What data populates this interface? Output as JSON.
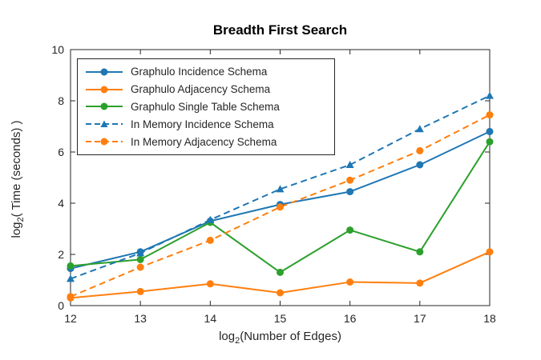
{
  "chart_data": {
    "type": "line",
    "title": "Breadth First Search",
    "xlabel": {
      "prefix": "log",
      "sub": "2",
      "suffix": "(Number of Edges)"
    },
    "ylabel": {
      "prefix": "log",
      "sub": "2",
      "suffix": "( Time (seconds) )"
    },
    "x": [
      12,
      13,
      14,
      15,
      16,
      17,
      18
    ],
    "xlim": [
      12,
      18
    ],
    "ylim": [
      0,
      10
    ],
    "xticks": [
      12,
      13,
      14,
      15,
      16,
      17,
      18
    ],
    "yticks": [
      0,
      2,
      4,
      6,
      8,
      10
    ],
    "grid": false,
    "legend_position": "top-left",
    "series": [
      {
        "name": "Graphulo Incidence Schema",
        "color": "#1f77b4",
        "line": "solid",
        "marker": "circle",
        "values": [
          1.45,
          2.1,
          3.3,
          3.95,
          4.45,
          5.5,
          6.8
        ]
      },
      {
        "name": "Graphulo Adjacency Schema",
        "color": "#ff7f0e",
        "line": "solid",
        "marker": "circle",
        "values": [
          0.3,
          0.55,
          0.85,
          0.5,
          0.92,
          0.88,
          2.1
        ]
      },
      {
        "name": "Graphulo Single Table Schema",
        "color": "#2ca02c",
        "line": "solid",
        "marker": "circle",
        "values": [
          1.55,
          1.8,
          3.25,
          1.3,
          2.95,
          2.1,
          6.4
        ]
      },
      {
        "name": "In Memory Incidence Schema",
        "color": "#1f77b4",
        "line": "dashed",
        "marker": "triangle",
        "values": [
          1.05,
          2.05,
          3.35,
          4.55,
          5.5,
          6.9,
          8.2
        ]
      },
      {
        "name": "In Memory Adjacency Schema",
        "color": "#ff7f0e",
        "line": "dashed",
        "marker": "circle",
        "values": [
          0.35,
          1.5,
          2.55,
          3.85,
          4.9,
          6.05,
          7.45
        ]
      }
    ]
  },
  "axes_style": {
    "axis_color": "#262626",
    "tick_label_color": "#262626",
    "background": "#ffffff"
  }
}
